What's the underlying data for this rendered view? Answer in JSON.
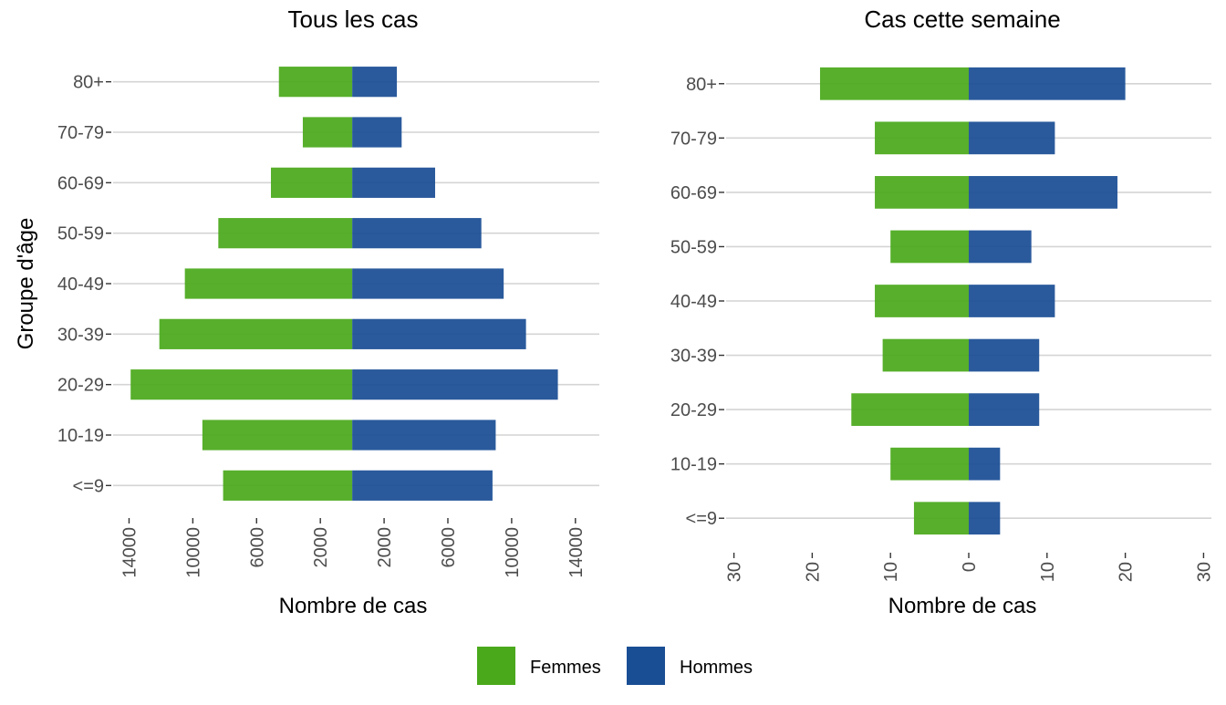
{
  "colors": {
    "femmes": "#4aa91b",
    "hommes": "#1a4e94",
    "grid": "#d4d4d4"
  },
  "legend": {
    "femmes": "Femmes",
    "hommes": "Hommes"
  },
  "ylabel": "Groupe d'âge",
  "chart_data": [
    {
      "type": "bar",
      "orientation": "horizontal-diverging",
      "title": "Tous les cas",
      "xlabel": "Nombre de cas",
      "ylabel": "Groupe d'âge",
      "categories": [
        "<=9",
        "10-19",
        "20-29",
        "30-39",
        "40-49",
        "50-59",
        "60-69",
        "70-79",
        "80+"
      ],
      "series": [
        {
          "name": "Femmes",
          "values": [
            8100,
            9400,
            13900,
            12100,
            10500,
            8400,
            5100,
            3100,
            4600
          ]
        },
        {
          "name": "Hommes",
          "values": [
            8800,
            9000,
            12900,
            10900,
            9500,
            8100,
            5200,
            3100,
            2800
          ]
        }
      ],
      "xlim": [
        -15000,
        15500
      ],
      "xticks": [
        -14000,
        -10000,
        -6000,
        -2000,
        2000,
        6000,
        10000,
        14000
      ],
      "xtick_labels": [
        "14000",
        "10000",
        "6000",
        "2000",
        "2000",
        "6000",
        "10000",
        "14000"
      ],
      "grid": true
    },
    {
      "type": "bar",
      "orientation": "horizontal-diverging",
      "title": "Cas cette semaine",
      "xlabel": "Nombre de cas",
      "categories": [
        "<=9",
        "10-19",
        "20-29",
        "30-39",
        "40-49",
        "50-59",
        "60-69",
        "70-79",
        "80+"
      ],
      "series": [
        {
          "name": "Femmes",
          "values": [
            7,
            10,
            15,
            11,
            12,
            10,
            12,
            12,
            19
          ]
        },
        {
          "name": "Hommes",
          "values": [
            4,
            4,
            9,
            9,
            11,
            8,
            19,
            11,
            20
          ]
        }
      ],
      "xlim": [
        -31,
        31
      ],
      "xticks": [
        -30,
        -20,
        -10,
        0,
        10,
        20,
        30
      ],
      "xtick_labels": [
        "30",
        "20",
        "10",
        "0",
        "10",
        "20",
        "30"
      ],
      "grid": true
    }
  ]
}
